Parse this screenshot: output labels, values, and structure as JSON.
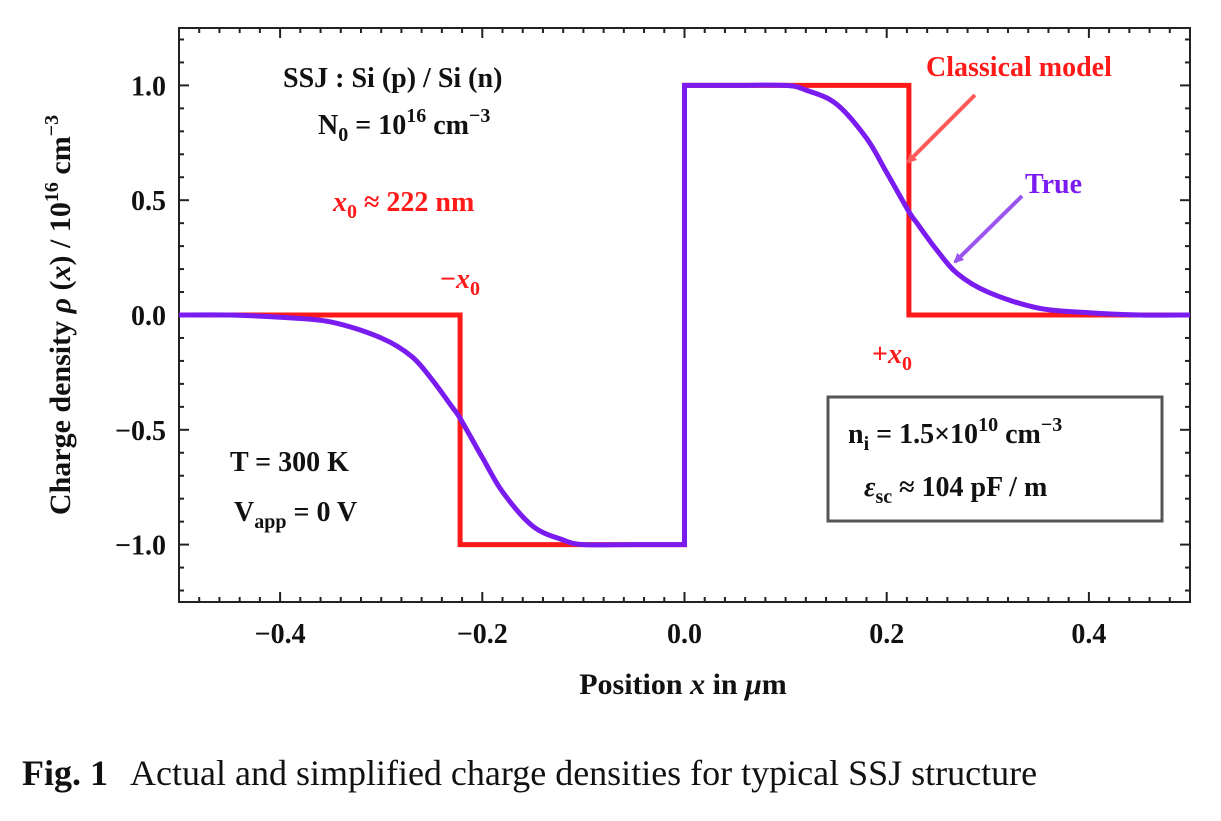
{
  "chart_data": {
    "type": "line",
    "xlabel_parts": [
      "Position ",
      "x",
      " in ",
      "μ",
      "m"
    ],
    "ylabel_parts": [
      "Charge density ",
      "ρ",
      " (",
      "x",
      ") / 10",
      "16",
      " cm",
      "−3"
    ],
    "xlim": [
      -0.5,
      0.5
    ],
    "ylim": [
      -1.25,
      1.25
    ],
    "x_ticks": [
      -0.4,
      -0.2,
      0.0,
      0.2,
      0.4
    ],
    "x_tick_labels": [
      "−0.4",
      "−0.2",
      "0.0",
      "0.2",
      "0.4"
    ],
    "y_ticks": [
      -1.0,
      -0.5,
      0.0,
      0.5,
      1.0
    ],
    "y_tick_labels": [
      "−1.0",
      "−0.5",
      "0.0",
      "0.5",
      "1.0"
    ],
    "x0": 0.222,
    "series": [
      {
        "name": "Classical model",
        "color": "#ff1a1a",
        "x": [
          -0.5,
          -0.222,
          -0.222,
          0.0,
          0.0,
          0.222,
          0.222,
          0.5
        ],
        "y": [
          0,
          0,
          -1,
          -1,
          1,
          1,
          0,
          0
        ]
      },
      {
        "name": "True",
        "color": "#7a1cf0",
        "x": [
          -0.5,
          -0.45,
          -0.4,
          -0.35,
          -0.3,
          -0.27,
          -0.25,
          -0.23,
          -0.222,
          -0.2,
          -0.18,
          -0.15,
          -0.12,
          -0.1,
          -0.05,
          0.0,
          0.0,
          0.05,
          0.1,
          0.12,
          0.15,
          0.18,
          0.2,
          0.222,
          0.23,
          0.25,
          0.27,
          0.3,
          0.35,
          0.4,
          0.45,
          0.5
        ],
        "y": [
          0,
          0,
          -0.01,
          -0.03,
          -0.1,
          -0.18,
          -0.28,
          -0.4,
          -0.45,
          -0.62,
          -0.77,
          -0.92,
          -0.98,
          -1.0,
          -1.0,
          -1.0,
          1.0,
          1.0,
          1.0,
          0.98,
          0.92,
          0.77,
          0.62,
          0.45,
          0.4,
          0.28,
          0.18,
          0.1,
          0.03,
          0.01,
          0,
          0
        ]
      }
    ],
    "annotations": {
      "ssj_prefix": "SSJ : Si (p) / Si (n)",
      "n0_lhs": "N",
      "n0_sub": "0",
      "n0_eq": " = 10",
      "n0_exp": "16",
      "n0_unit": " cm",
      "n0_unit_exp": "−3",
      "x0_var": "x",
      "x0_sub": "0",
      "x0_rest": " ≈ 222 nm",
      "minus_x0_sign": "−",
      "minus_x0_var": "x",
      "minus_x0_sub": "0",
      "plus_x0_sign": "+",
      "plus_x0_var": "x",
      "plus_x0_sub": "0",
      "temp": "T = 300 K",
      "vapp_lhs": "V",
      "vapp_sub": "app",
      "vapp_rest": " = 0 V",
      "classical_label": "Classical model",
      "true_label": "True",
      "ni_lhs": "n",
      "ni_sub": "i",
      "ni_eq": " = 1.5×10",
      "ni_exp": "10",
      "ni_unit": " cm",
      "ni_unit_exp": "−3",
      "eps_lhs": "ε",
      "eps_sub": "sc",
      "eps_rest": " ≈ 104 pF / m"
    }
  },
  "caption": {
    "label": "Fig. 1",
    "text": "Actual and simplified charge densities for typical SSJ structure"
  }
}
